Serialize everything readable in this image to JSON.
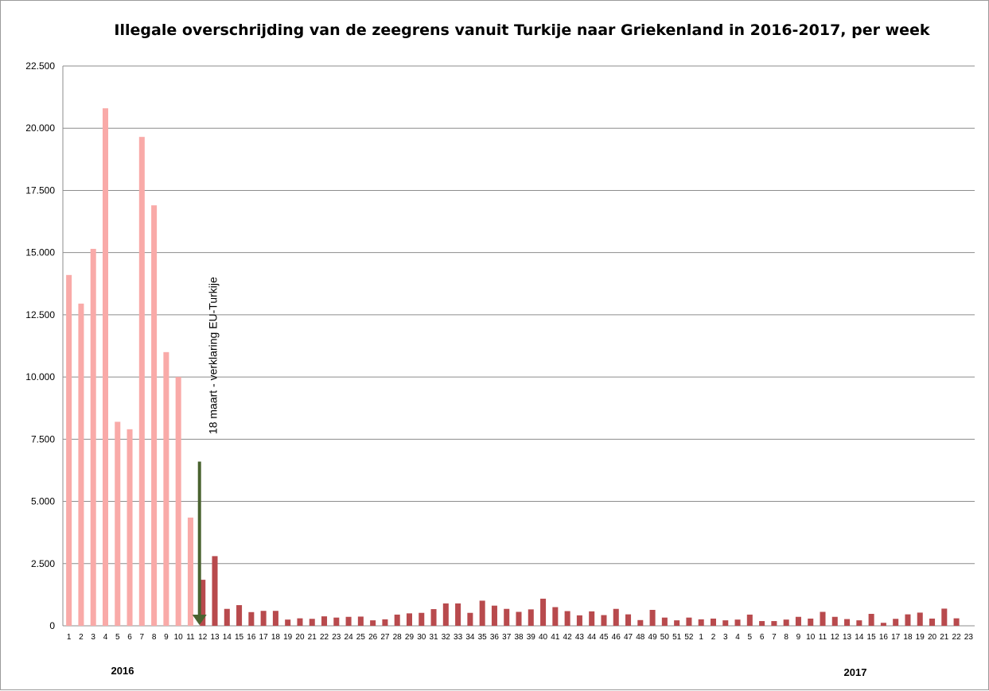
{
  "chart_data": {
    "type": "bar",
    "title": "Illegale overschrijding  van de zeegrens vanuit Turkije naar Griekenland  in 2016-2017, per week",
    "ylim": [
      0,
      22500
    ],
    "yticks": [
      "0",
      "2.500",
      "5.000",
      "7.500",
      "10.000",
      "12.500",
      "15.000",
      "17.500",
      "20.000",
      "22.500"
    ],
    "ytick_values": [
      0,
      2500,
      5000,
      7500,
      10000,
      12500,
      15000,
      17500,
      20000,
      22500
    ],
    "grid": true,
    "categories": [
      "1",
      "2",
      "3",
      "4",
      "5",
      "6",
      "7",
      "8",
      "9",
      "10",
      "11",
      "12",
      "13",
      "14",
      "15",
      "16",
      "17",
      "18",
      "19",
      "20",
      "21",
      "22",
      "23",
      "24",
      "25",
      "26",
      "27",
      "28",
      "29",
      "30",
      "31",
      "32",
      "33",
      "34",
      "35",
      "36",
      "37",
      "38",
      "39",
      "40",
      "41",
      "42",
      "43",
      "44",
      "45",
      "46",
      "47",
      "48",
      "49",
      "50",
      "51",
      "52",
      "1",
      "2",
      "3",
      "4",
      "5",
      "6",
      "7",
      "8",
      "9",
      "10",
      "11",
      "12",
      "13",
      "14",
      "15",
      "16",
      "17",
      "18",
      "19",
      "20",
      "21",
      "22",
      "23"
    ],
    "values": [
      14100,
      12950,
      15150,
      20800,
      8200,
      7900,
      19650,
      16900,
      11000,
      10000,
      4350,
      1850,
      2800,
      680,
      830,
      550,
      600,
      600,
      250,
      300,
      280,
      380,
      330,
      360,
      370,
      220,
      260,
      450,
      500,
      520,
      670,
      900,
      900,
      520,
      1010,
      810,
      680,
      560,
      660,
      1090,
      750,
      590,
      420,
      580,
      430,
      680,
      460,
      230,
      640,
      330,
      220,
      330,
      260,
      290,
      220,
      250,
      450,
      190,
      190,
      250,
      360,
      290,
      560,
      360,
      270,
      220,
      480,
      120,
      280,
      460,
      530,
      290,
      690,
      300,
      0
    ],
    "colors": {
      "before": "#f9aaa8",
      "after": "#b84a4d",
      "arrow": "#4a6330",
      "grid": "#8c8c8c",
      "axis": "#8c8c8c"
    },
    "split_after_index": 10,
    "years": [
      "2016",
      "2017"
    ],
    "annotation": "18 maart  - verklaring EU-Turkije",
    "annotation_at_index": 11,
    "arrow_top_value": 6600
  }
}
